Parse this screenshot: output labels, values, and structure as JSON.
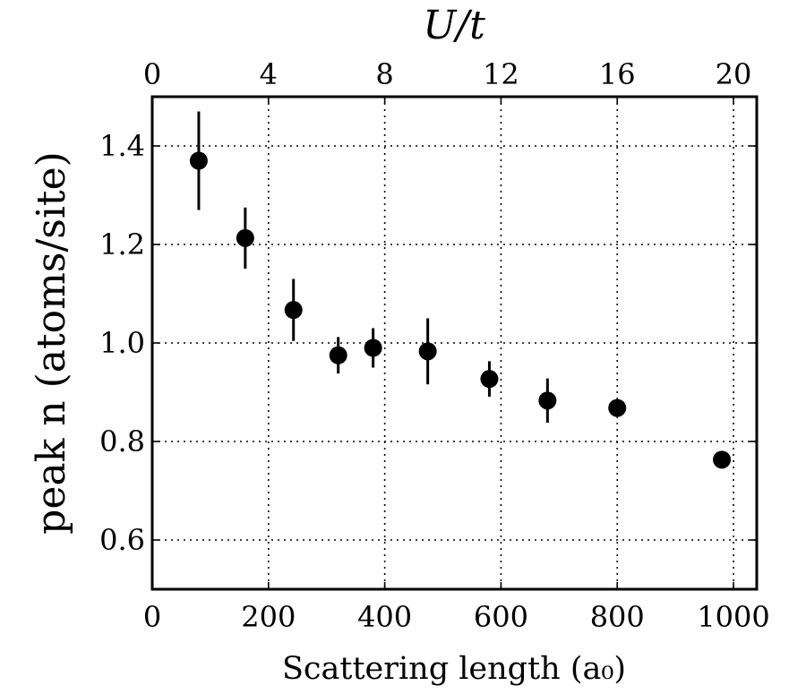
{
  "chart_data": {
    "type": "scatter",
    "xlabel": "Scattering length (a₀)",
    "ylabel": "peak n (atoms/site)",
    "top_xlabel": "U/t",
    "xlim": [
      0,
      1040
    ],
    "ylim": [
      0.5,
      1.5
    ],
    "top_xlim": [
      0,
      20.8
    ],
    "x_ticks": [
      "0",
      "200",
      "400",
      "600",
      "800",
      "1000"
    ],
    "x_tick_values": [
      0,
      200,
      400,
      600,
      800,
      1000
    ],
    "y_ticks": [
      "0.6",
      "0.8",
      "1.0",
      "1.2",
      "1.4"
    ],
    "y_tick_values": [
      0.6,
      0.8,
      1.0,
      1.2,
      1.4
    ],
    "top_ticks": [
      "0",
      "4",
      "8",
      "12",
      "16",
      "20"
    ],
    "top_tick_values": [
      0,
      4,
      8,
      12,
      16,
      20
    ],
    "grid": true,
    "marker_color": "#000000",
    "series": [
      {
        "points": [
          {
            "x": 80,
            "y": 1.37,
            "err": 0.1
          },
          {
            "x": 160,
            "y": 1.213,
            "err": 0.062
          },
          {
            "x": 243,
            "y": 1.067,
            "err": 0.063
          },
          {
            "x": 320,
            "y": 0.975,
            "err": 0.037
          },
          {
            "x": 380,
            "y": 0.99,
            "err": 0.04
          },
          {
            "x": 474,
            "y": 0.983,
            "err": 0.067
          },
          {
            "x": 580,
            "y": 0.927,
            "err": 0.036
          },
          {
            "x": 680,
            "y": 0.883,
            "err": 0.045
          },
          {
            "x": 800,
            "y": 0.868,
            "err": 0.015
          },
          {
            "x": 980,
            "y": 0.763,
            "err": 0.0
          }
        ]
      }
    ]
  }
}
